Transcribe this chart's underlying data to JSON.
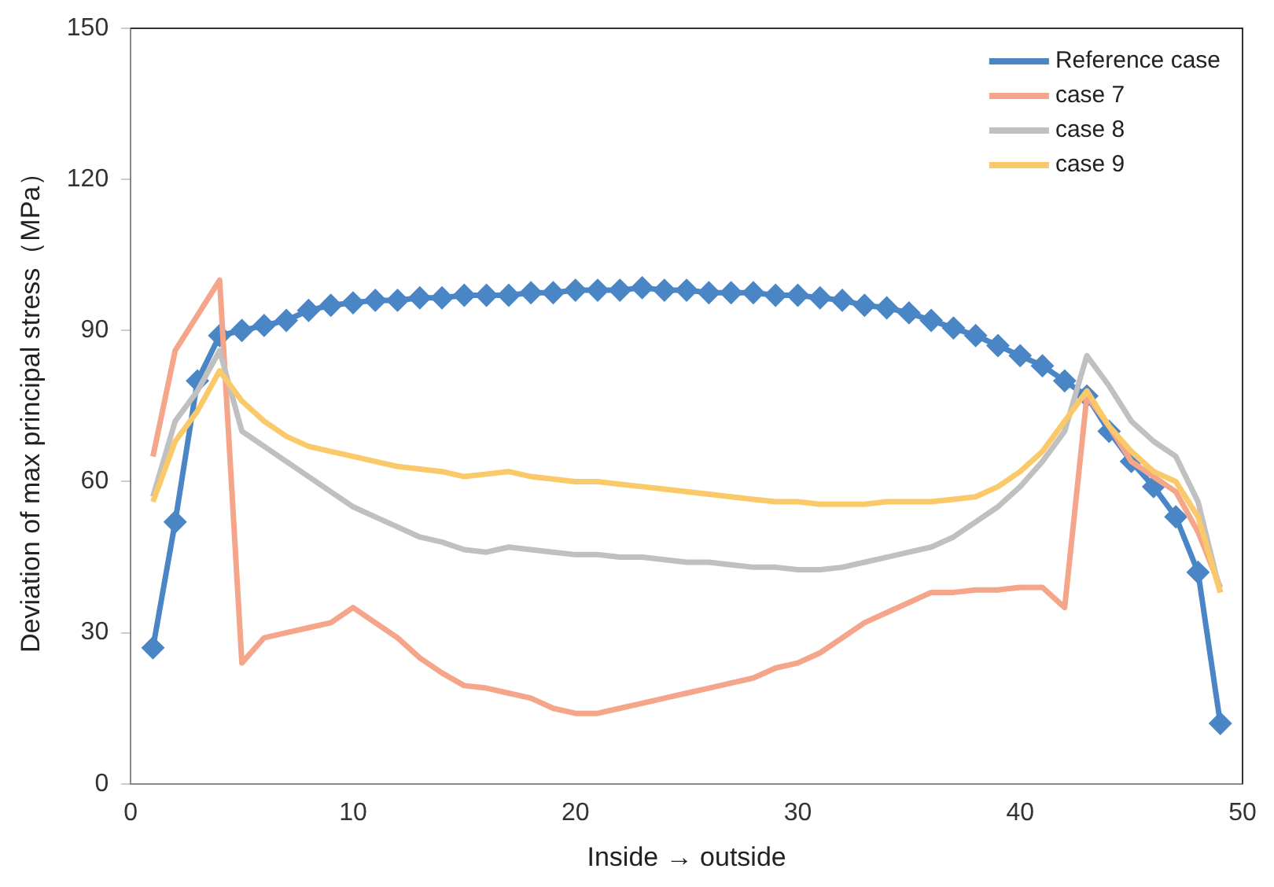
{
  "chart_data": {
    "type": "line",
    "xlabel": "Inside → outside",
    "ylabel": "Deviation of max principal stress（MPa）",
    "x": [
      1,
      2,
      3,
      4,
      5,
      6,
      7,
      8,
      9,
      10,
      11,
      12,
      13,
      14,
      15,
      16,
      17,
      18,
      19,
      20,
      21,
      22,
      23,
      24,
      25,
      26,
      27,
      28,
      29,
      30,
      31,
      32,
      33,
      34,
      35,
      36,
      37,
      38,
      39,
      40,
      41,
      42,
      43,
      44,
      45,
      46,
      47,
      48,
      49
    ],
    "xlim": [
      0,
      50
    ],
    "xticks": [
      0,
      10,
      20,
      30,
      40,
      50
    ],
    "ylim": [
      0,
      150
    ],
    "yticks": [
      0,
      30,
      60,
      90,
      120,
      150
    ],
    "grid": false,
    "legend": "top right",
    "line_style": "solid",
    "series": [
      {
        "name": "Reference case",
        "color": "#4a86c6",
        "marker": "diamond",
        "values": [
          27,
          52,
          80,
          89,
          90,
          91,
          92,
          94,
          95,
          95.5,
          96,
          96,
          96.5,
          96.5,
          97,
          97,
          97,
          97.5,
          97.5,
          98,
          98,
          98,
          98.5,
          98,
          98,
          97.5,
          97.5,
          97.5,
          97,
          97,
          96.5,
          96,
          95,
          94.5,
          93.5,
          92,
          90.5,
          89,
          87,
          85,
          83,
          80,
          77,
          70,
          64,
          59,
          53,
          42,
          12
        ]
      },
      {
        "name": "case 7",
        "color": "#f4a58a",
        "marker": "none",
        "values": [
          65,
          86,
          93,
          100,
          24,
          29,
          30,
          31,
          32,
          35,
          32,
          29,
          25,
          22,
          19.5,
          19,
          18,
          17,
          15,
          14,
          14,
          15,
          16,
          17,
          18,
          19,
          20,
          21,
          23,
          24,
          26,
          29,
          32,
          34,
          36,
          38,
          38,
          38.5,
          38.5,
          39,
          39,
          35,
          77,
          71,
          64,
          61,
          58,
          50,
          39
        ]
      },
      {
        "name": "case 8",
        "color": "#c0c0c0",
        "marker": "none",
        "values": [
          57,
          72,
          78,
          86,
          70,
          67,
          64,
          61,
          58,
          55,
          53,
          51,
          49,
          48,
          46.5,
          46,
          47,
          46.5,
          46,
          45.5,
          45.5,
          45,
          45,
          44.5,
          44,
          44,
          43.5,
          43,
          43,
          42.5,
          42.5,
          43,
          44,
          45,
          46,
          47,
          49,
          52,
          55,
          59,
          64,
          70,
          85,
          79,
          72,
          68,
          65,
          56,
          38
        ]
      },
      {
        "name": "case 9",
        "color": "#f9c96a",
        "marker": "none",
        "values": [
          56,
          68,
          74,
          82,
          76,
          72,
          69,
          67,
          66,
          65,
          64,
          63,
          62.5,
          62,
          61,
          61.5,
          62,
          61,
          60.5,
          60,
          60,
          59.5,
          59,
          58.5,
          58,
          57.5,
          57,
          56.5,
          56,
          56,
          55.5,
          55.5,
          55.5,
          56,
          56,
          56,
          56.5,
          57,
          59,
          62,
          66,
          72,
          78,
          71,
          66,
          62,
          60,
          53,
          38
        ]
      }
    ]
  }
}
